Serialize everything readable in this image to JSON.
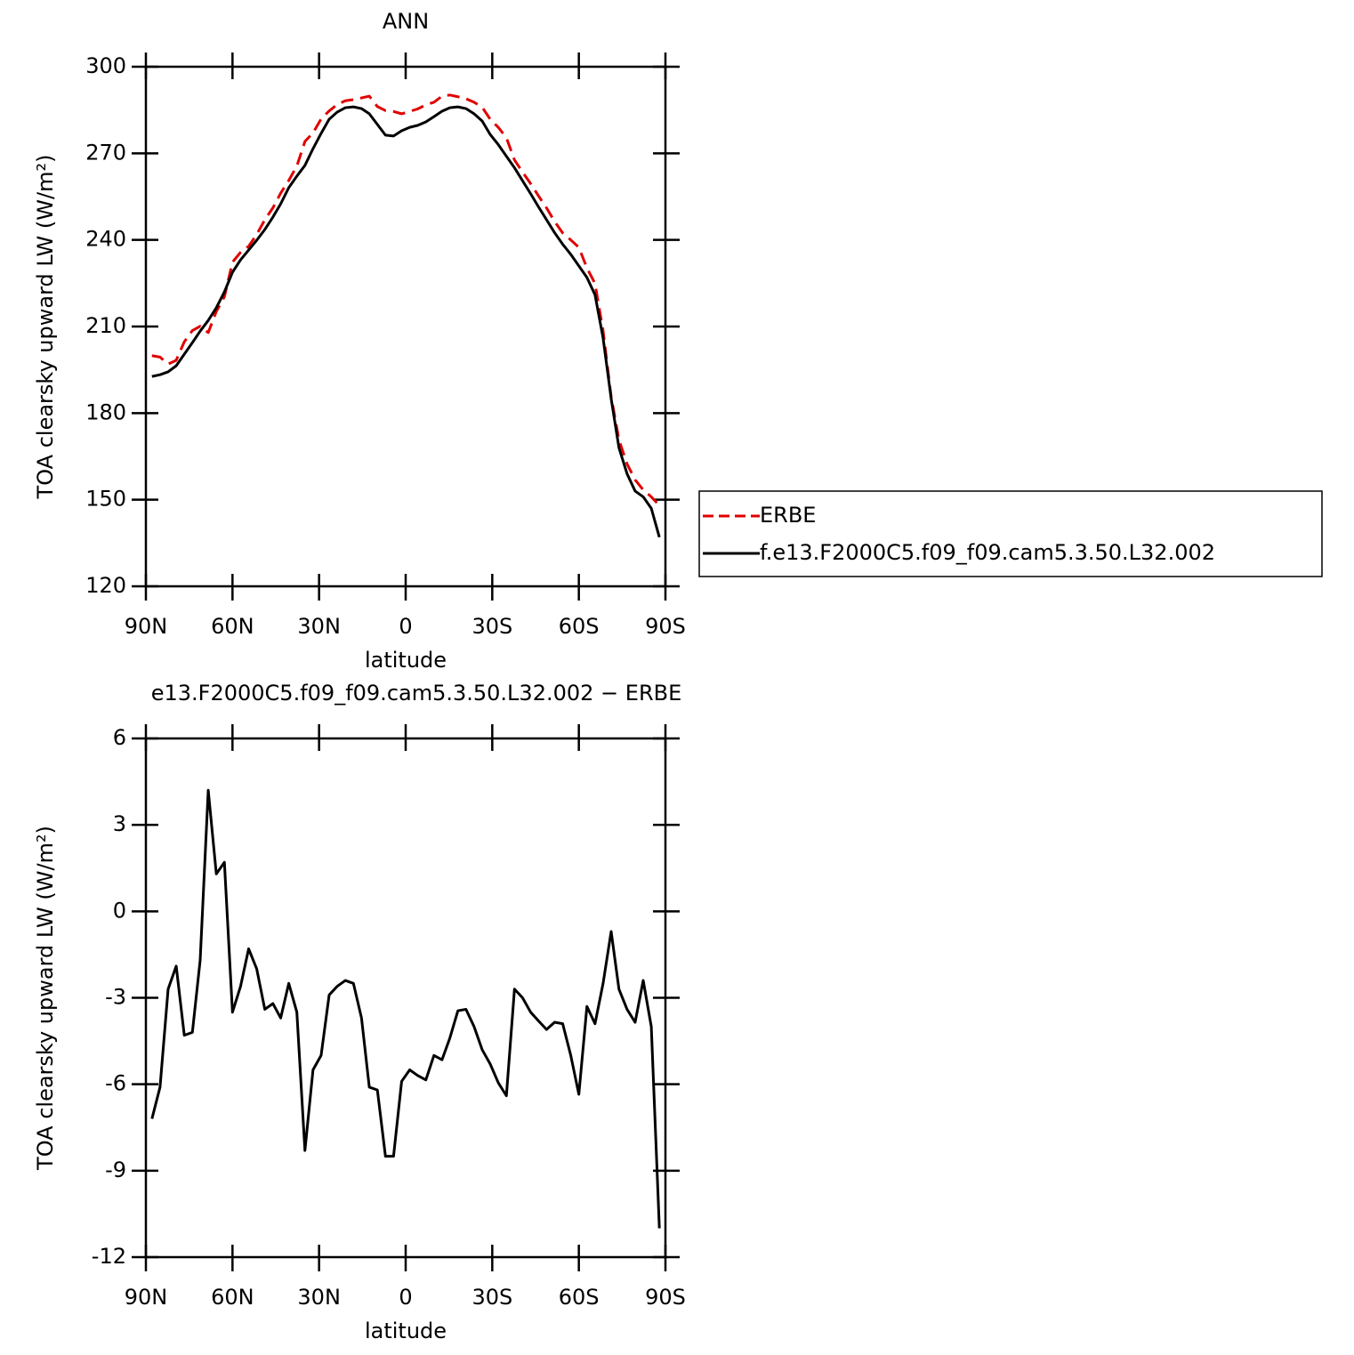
{
  "chart_data": [
    {
      "type": "line",
      "title": "ANN",
      "xlabel": "latitude",
      "ylabel": "TOA clearsky upward LW (W/m²)",
      "x": [
        87.9,
        85.1,
        82.3,
        79.5,
        76.7,
        73.9,
        71.2,
        68.4,
        65.6,
        62.8,
        60.0,
        57.2,
        54.4,
        51.6,
        48.8,
        46.0,
        43.3,
        40.5,
        37.7,
        34.9,
        32.1,
        29.3,
        26.5,
        23.7,
        20.9,
        18.1,
        15.3,
        12.6,
        9.8,
        7.0,
        4.2,
        1.4,
        -1.4,
        -4.2,
        -7.0,
        -9.8,
        -12.6,
        -15.3,
        -18.1,
        -20.9,
        -23.7,
        -26.5,
        -29.3,
        -32.1,
        -34.9,
        -37.7,
        -40.5,
        -43.3,
        -46.0,
        -48.8,
        -51.6,
        -54.4,
        -57.2,
        -60.0,
        -62.8,
        -65.6,
        -68.4,
        -71.2,
        -73.9,
        -76.7,
        -79.5,
        -82.3,
        -85.1,
        -87.9
      ],
      "series": [
        {
          "name": "ERBE",
          "color": "#e00000",
          "linestyle": "dashed",
          "values": [
            199.9,
            199.4,
            197.0,
            198.3,
            204.7,
            208.6,
            210.1,
            207.9,
            215.2,
            220.3,
            232.3,
            235.7,
            237.8,
            241.9,
            247.0,
            251.1,
            256.2,
            260.6,
            265.6,
            274.1,
            277.1,
            281.9,
            284.7,
            286.9,
            288.2,
            288.6,
            289.2,
            289.8,
            286.2,
            284.8,
            284.5,
            283.7,
            284.5,
            285.4,
            286.8,
            287.7,
            289.8,
            290.2,
            289.6,
            288.9,
            287.7,
            286.0,
            281.8,
            279.0,
            275.4,
            267.7,
            263.5,
            259.5,
            255.3,
            251.1,
            246.4,
            242.4,
            240.0,
            237.4,
            230.3,
            224.9,
            208.5,
            185.7,
            170.7,
            162.4,
            156.9,
            153.4,
            151.0,
            148.0
          ]
        },
        {
          "name": "f.e13.F2000C5.f09_f09.cam5.3.50.L32.002",
          "color": "#000000",
          "linestyle": "solid",
          "values": [
            192.7,
            193.3,
            194.3,
            196.4,
            200.4,
            204.4,
            208.4,
            212.1,
            216.5,
            222.0,
            228.8,
            233.1,
            236.5,
            239.9,
            243.6,
            247.9,
            252.5,
            258.1,
            262.1,
            265.8,
            271.6,
            276.9,
            281.8,
            284.3,
            285.8,
            286.1,
            285.5,
            283.7,
            280.0,
            276.3,
            276.0,
            277.8,
            279.0,
            279.7,
            280.9,
            282.7,
            284.6,
            285.8,
            286.1,
            285.5,
            283.7,
            281.2,
            276.5,
            273.0,
            269.0,
            265.0,
            260.5,
            256.0,
            251.5,
            247.0,
            242.5,
            238.5,
            235.0,
            231.0,
            227.0,
            221.0,
            206.0,
            185.0,
            168.0,
            159.0,
            153.0,
            151.0,
            147.0,
            137.0
          ]
        }
      ],
      "xlim": [
        90,
        -90
      ],
      "xticks": [
        {
          "value": 90,
          "label": "90N"
        },
        {
          "value": 60,
          "label": "60N"
        },
        {
          "value": 30,
          "label": "30N"
        },
        0,
        {
          "value": -30,
          "label": "30S"
        },
        {
          "value": -60,
          "label": "60S"
        },
        {
          "value": -90,
          "label": "90S"
        }
      ],
      "ylim": [
        120,
        300
      ],
      "yticks": [
        120,
        150,
        180,
        210,
        240,
        270,
        300
      ],
      "legend": "right"
    },
    {
      "type": "line",
      "title": "e13.F2000C5.f09_f09.cam5.3.50.L32.002 − ERBE",
      "xlabel": "latitude",
      "ylabel": "TOA clearsky upward LW (W/m²)",
      "x": [
        87.9,
        85.1,
        82.3,
        79.5,
        76.7,
        73.9,
        71.2,
        68.4,
        65.6,
        62.8,
        60.0,
        57.2,
        54.4,
        51.6,
        48.8,
        46.0,
        43.3,
        40.5,
        37.7,
        34.9,
        32.1,
        29.3,
        26.5,
        23.7,
        20.9,
        18.1,
        15.3,
        12.6,
        9.8,
        7.0,
        4.2,
        1.4,
        -1.4,
        -4.2,
        -7.0,
        -9.8,
        -12.6,
        -15.3,
        -18.1,
        -20.9,
        -23.7,
        -26.5,
        -29.3,
        -32.1,
        -34.9,
        -37.7,
        -40.5,
        -43.3,
        -46.0,
        -48.8,
        -51.6,
        -54.4,
        -57.2,
        -60.0,
        -62.8,
        -65.6,
        -68.4,
        -71.2,
        -73.9,
        -76.7,
        -79.5,
        -82.3,
        -85.1,
        -87.9
      ],
      "values": [
        -7.2,
        -6.1,
        -2.7,
        -1.9,
        -4.3,
        -4.2,
        -1.7,
        4.2,
        1.3,
        1.7,
        -3.5,
        -2.6,
        -1.3,
        -2.0,
        -3.4,
        -3.2,
        -3.7,
        -2.5,
        -3.5,
        -8.3,
        -5.5,
        -5.0,
        -2.9,
        -2.6,
        -2.4,
        -2.5,
        -3.7,
        -6.1,
        -6.2,
        -8.5,
        -8.5,
        -5.9,
        -5.5,
        -5.7,
        -5.85,
        -5.0,
        -5.15,
        -4.4,
        -3.45,
        -3.4,
        -4.0,
        -4.8,
        -5.3,
        -5.95,
        -6.4,
        -2.7,
        -3.0,
        -3.5,
        -3.8,
        -4.1,
        -3.85,
        -3.9,
        -5.0,
        -6.35,
        -3.3,
        -3.9,
        -2.5,
        -0.7,
        -2.7,
        -3.4,
        -3.85,
        -2.4,
        -4.0,
        -11.0
      ],
      "color": "#000000",
      "xlim": [
        90,
        -90
      ],
      "xticks": [
        {
          "value": 90,
          "label": "90N"
        },
        {
          "value": 60,
          "label": "60N"
        },
        {
          "value": 30,
          "label": "30N"
        },
        0,
        {
          "value": -30,
          "label": "30S"
        },
        {
          "value": -60,
          "label": "60S"
        },
        {
          "value": -90,
          "label": "90S"
        }
      ],
      "ylim": [
        -12,
        6
      ],
      "yticks": [
        -12,
        -9,
        -6,
        -3,
        0,
        3,
        6
      ]
    }
  ]
}
